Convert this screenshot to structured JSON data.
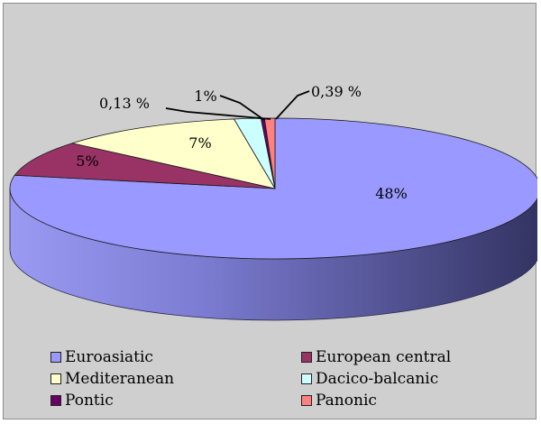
{
  "chart_data": {
    "type": "pie",
    "three_d": true,
    "categories": [
      "Euroasiatic",
      "European central",
      "Mediteranean",
      "Dacico-balcanic",
      "Pontic",
      "Panonic"
    ],
    "values": [
      48,
      5,
      7,
      1,
      0.13,
      0.39
    ],
    "labels": [
      "48%",
      "5%",
      "7%",
      "1%",
      "0,13 %",
      "0,39 %"
    ],
    "colors": [
      "#9999ff",
      "#993366",
      "#ffffcc",
      "#ccffff",
      "#660066",
      "#ff8080"
    ],
    "legend_position": "bottom",
    "legend": [
      {
        "label": "Euroasiatic",
        "color": "#9999ff"
      },
      {
        "label": "European central",
        "color": "#993366"
      },
      {
        "label": "Mediteranean",
        "color": "#ffffcc"
      },
      {
        "label": "Dacico-balcanic",
        "color": "#ccffff"
      },
      {
        "label": "Pontic",
        "color": "#660066"
      },
      {
        "label": "Panonic",
        "color": "#ff8080"
      }
    ]
  }
}
